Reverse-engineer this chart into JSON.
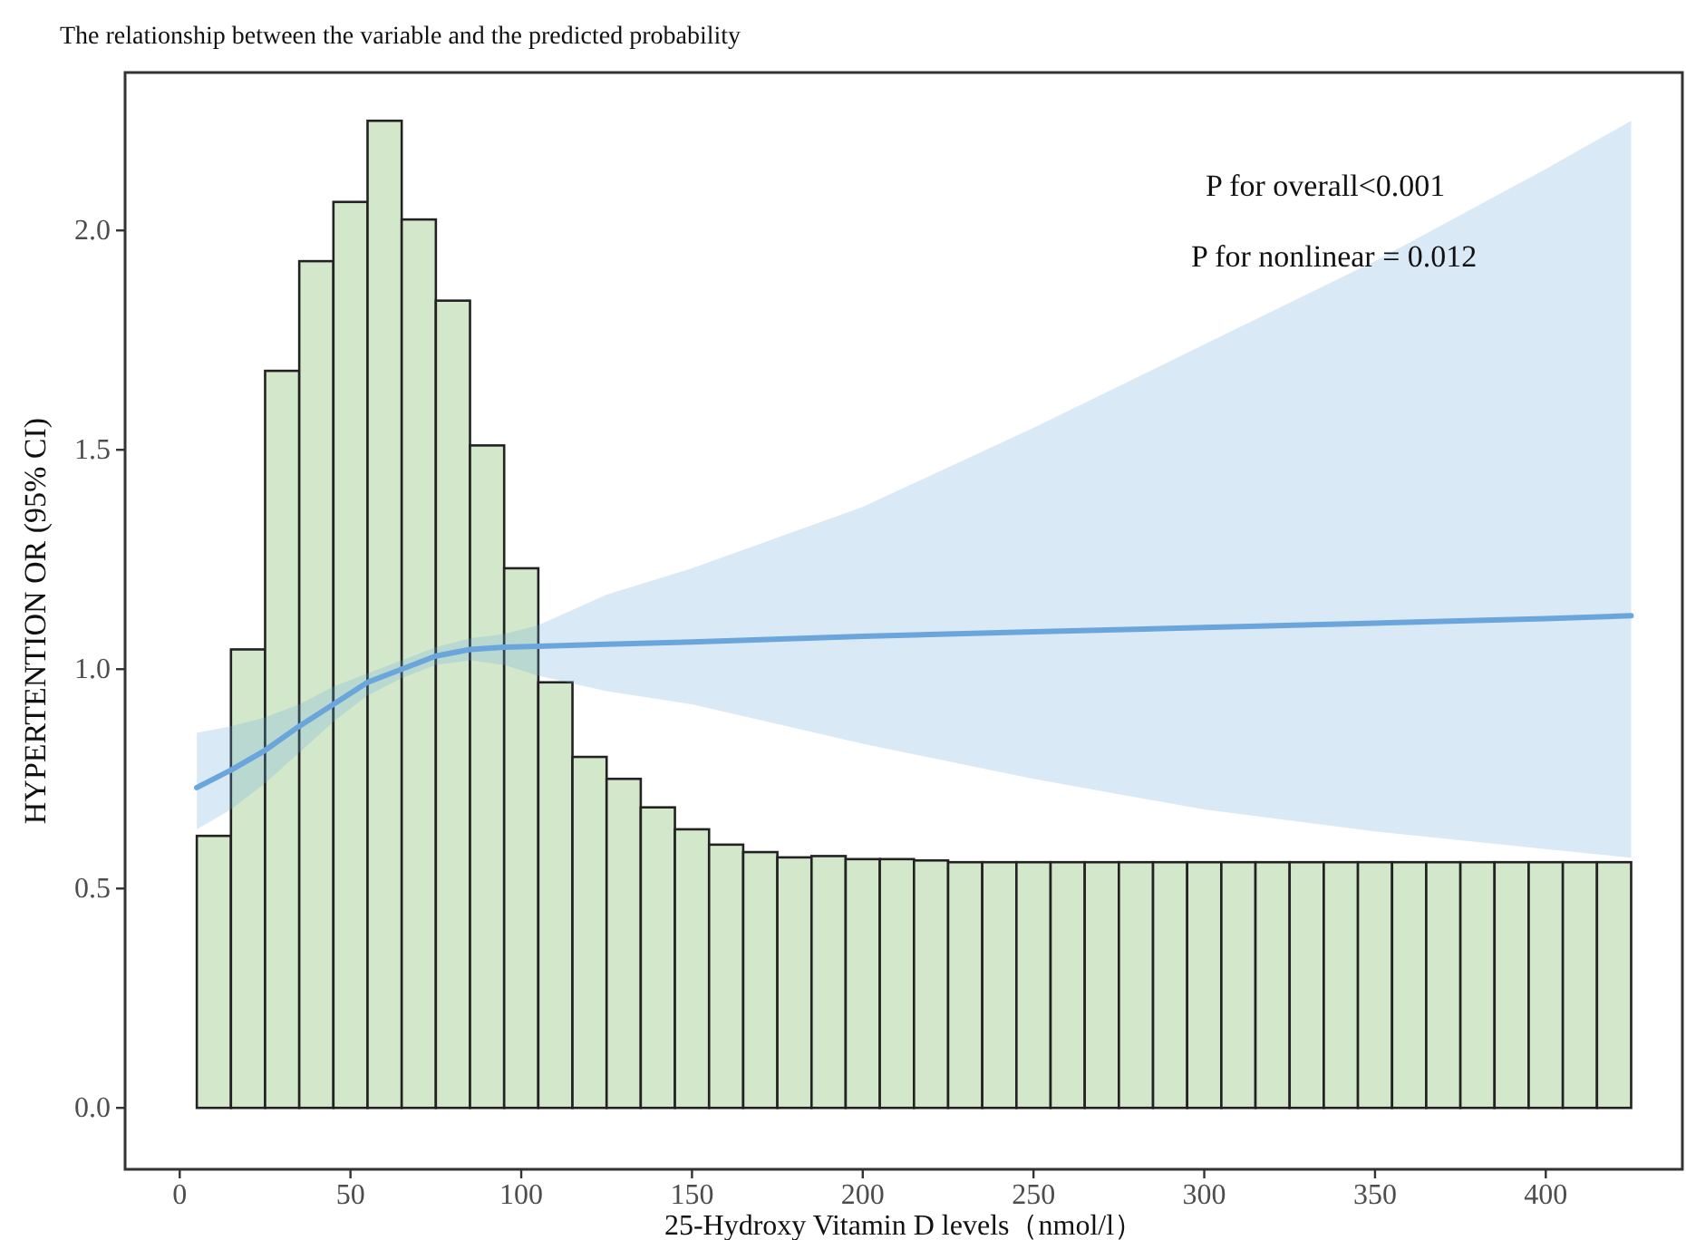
{
  "chart_data": {
    "type": "histogram",
    "title": "The relationship between the variable and the predicted probability",
    "xlabel": "25-Hydroxy Vitamin D levels（nmol/l）",
    "ylabel": "HYPERTENTION OR (95% CI)",
    "annotations": [
      "P for overall<0.001",
      "P for nonlinear = 0.012"
    ],
    "bins": [
      5,
      15,
      25,
      35,
      45,
      55,
      65,
      75,
      85,
      95,
      105,
      115,
      125,
      135,
      145,
      155,
      165,
      175,
      185,
      195,
      205,
      215,
      225,
      235,
      245,
      255,
      265,
      275,
      285,
      295,
      305,
      315,
      325,
      335,
      345,
      355,
      365,
      375,
      385,
      395,
      405,
      415,
      425
    ],
    "values": [
      0.62,
      1.045,
      1.68,
      1.93,
      2.065,
      2.25,
      2.025,
      1.84,
      1.51,
      1.23,
      0.97,
      0.8,
      0.75,
      0.685,
      0.635,
      0.6,
      0.583,
      0.571,
      0.574,
      0.567,
      0.567,
      0.564,
      0.56,
      0.56,
      0.56,
      0.56,
      0.56,
      0.56,
      0.56,
      0.56,
      0.56,
      0.56,
      0.56,
      0.56,
      0.56,
      0.56,
      0.56,
      0.56,
      0.56,
      0.56,
      0.56,
      0.56
    ],
    "color": "#d3e8cb",
    "series": [
      {
        "type": "line",
        "color": "#6aa6dc",
        "x": [
          5,
          15,
          25,
          35,
          45,
          55,
          65,
          75,
          85,
          95,
          105,
          125,
          150,
          200,
          250,
          300,
          350,
          400,
          425
        ],
        "values": [
          0.73,
          0.77,
          0.815,
          0.87,
          0.92,
          0.97,
          1.0,
          1.03,
          1.045,
          1.05,
          1.052,
          1.057,
          1.062,
          1.075,
          1.085,
          1.095,
          1.105,
          1.115,
          1.122
        ],
        "lower": [
          0.635,
          0.68,
          0.74,
          0.81,
          0.88,
          0.94,
          0.98,
          1.01,
          1.02,
          1.01,
          0.985,
          0.95,
          0.92,
          0.83,
          0.75,
          0.68,
          0.63,
          0.59,
          0.57
        ],
        "upper": [
          0.855,
          0.87,
          0.89,
          0.92,
          0.96,
          0.99,
          1.02,
          1.05,
          1.07,
          1.08,
          1.1,
          1.17,
          1.23,
          1.37,
          1.55,
          1.74,
          1.93,
          2.14,
          2.25
        ]
      }
    ],
    "xlim": [
      -16,
      440
    ],
    "ylim": [
      -0.14,
      2.36
    ],
    "xticks": [
      0,
      50,
      100,
      150,
      200,
      250,
      300,
      350,
      400
    ],
    "yticks": [
      {
        "value": 0,
        "label": "0.0"
      },
      {
        "value": 0.5,
        "label": "0.5"
      },
      {
        "value": 1,
        "label": "1.0"
      },
      {
        "value": 1.5,
        "label": "1.5"
      },
      {
        "value": 2,
        "label": "2.0"
      }
    ]
  }
}
